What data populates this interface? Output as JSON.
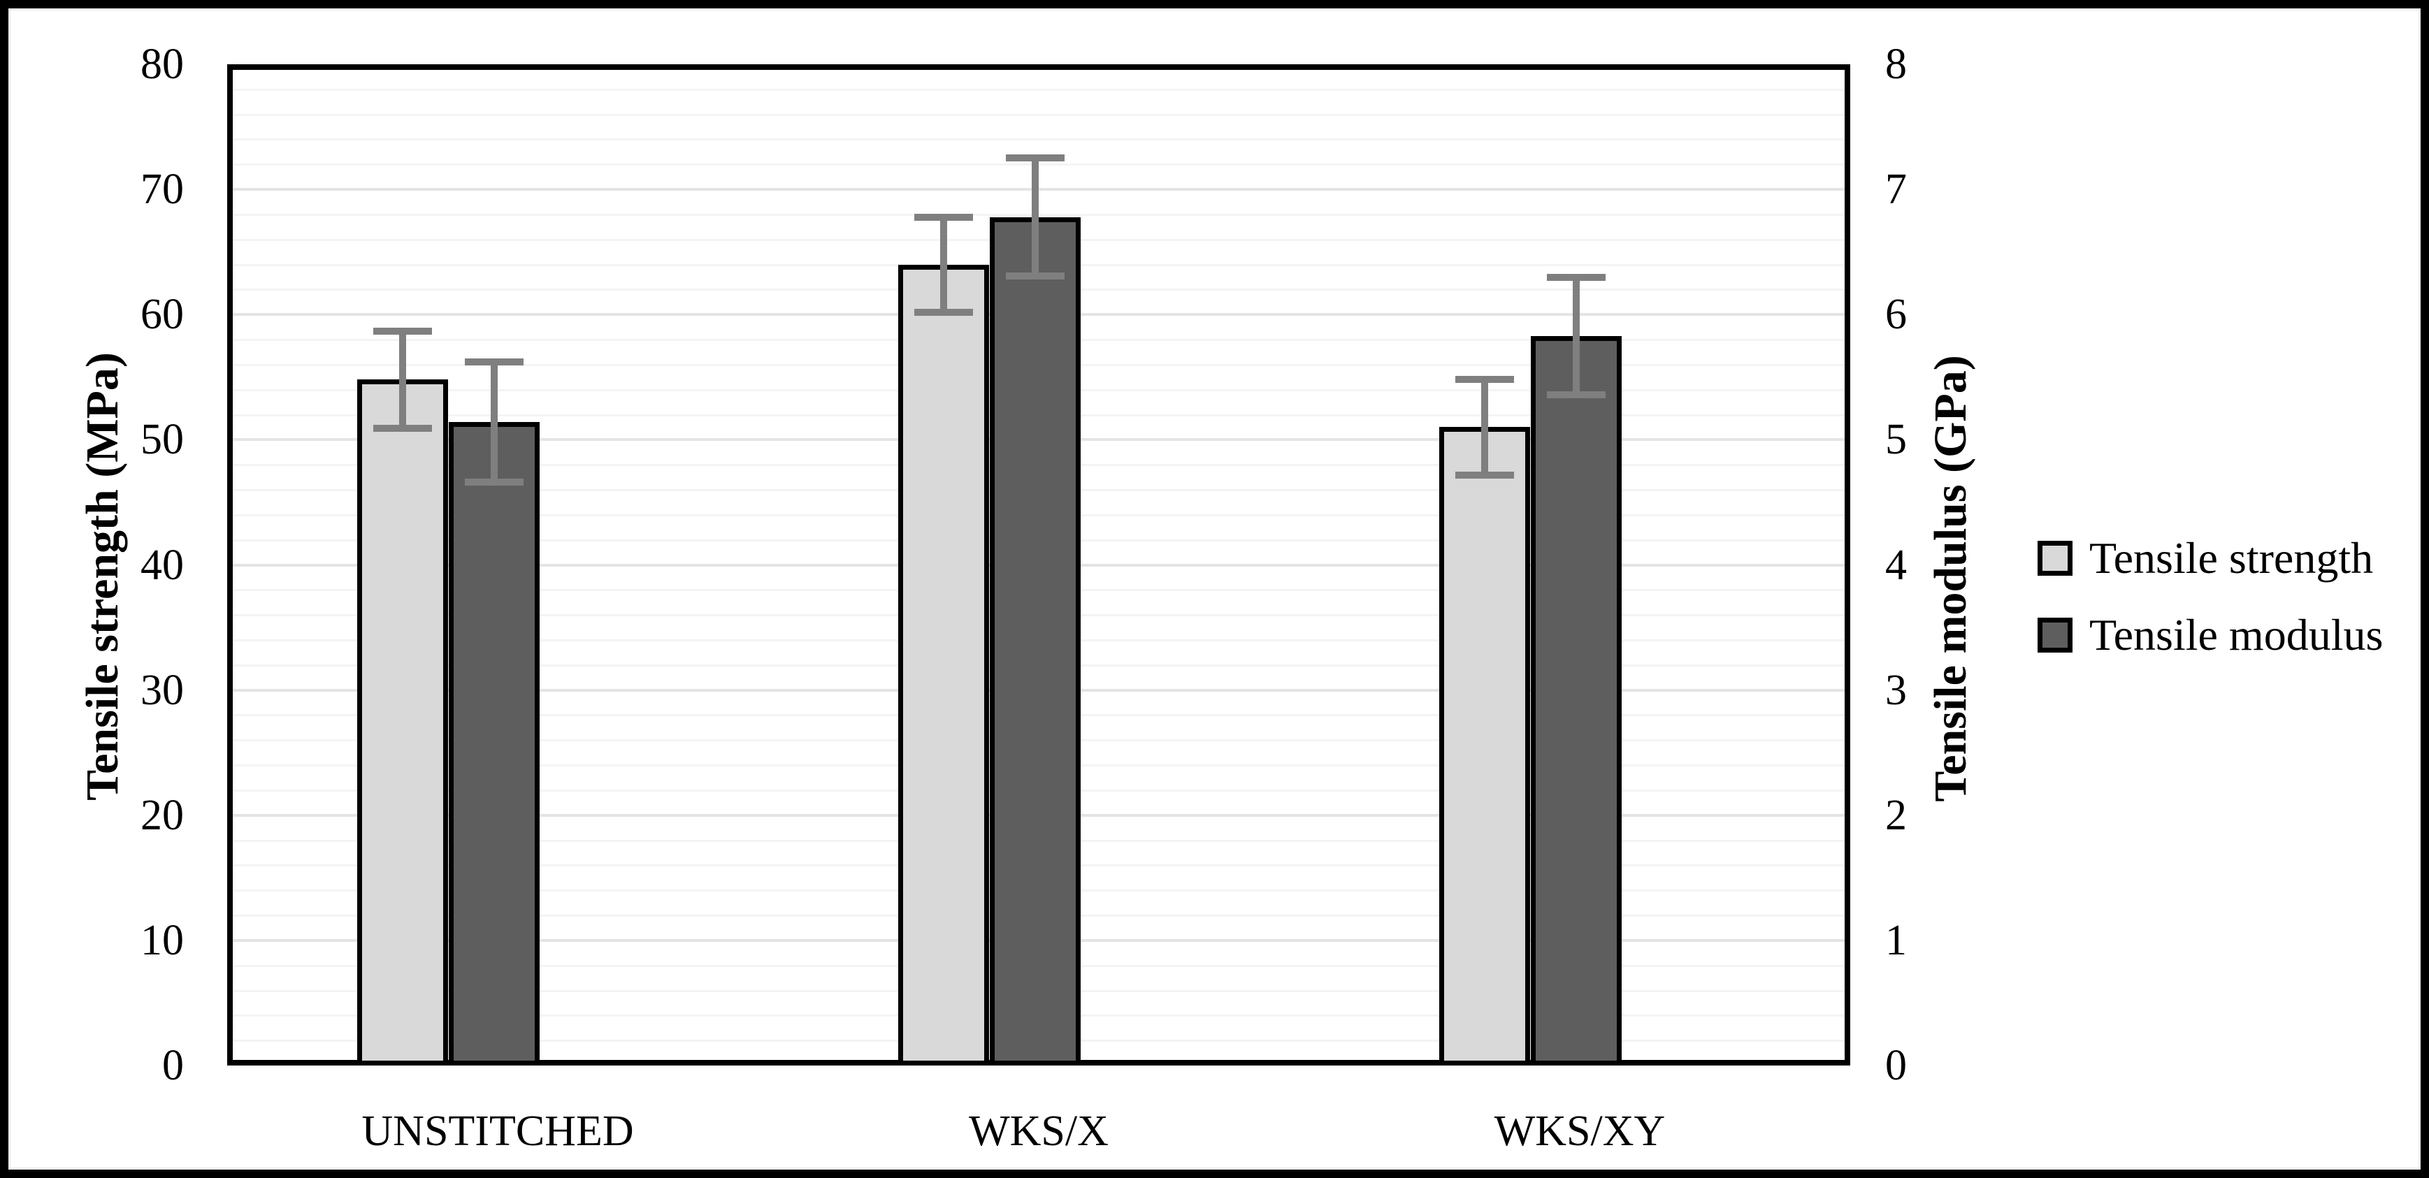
{
  "chart_data": {
    "type": "bar",
    "title": "",
    "categories": [
      "UNSTITCHED",
      "WKS/X",
      "WKS/XY"
    ],
    "series": [
      {
        "name": "Tensile strength",
        "axis": "left",
        "unit": "MPa",
        "values": [
          54.8,
          64.0,
          51.0
        ],
        "errors": [
          3.9,
          3.8,
          3.8
        ],
        "fill": "#d9d9d9"
      },
      {
        "name": "Tensile modulus",
        "axis": "right",
        "unit": "GPa",
        "values": [
          5.14,
          6.78,
          5.83
        ],
        "errors": [
          0.48,
          0.47,
          0.47
        ],
        "fill": "#5e5e5e"
      }
    ],
    "left_axis": {
      "label": "Tensile strength (MPa)",
      "min": 0,
      "max": 80,
      "major_step": 10,
      "minor_step": 2,
      "ticks": [
        "0",
        "10",
        "20",
        "30",
        "40",
        "50",
        "60",
        "70",
        "80"
      ]
    },
    "right_axis": {
      "label": "Tensile modulus (GPa)",
      "min": 0,
      "max": 8,
      "major_step": 1,
      "ticks": [
        "0",
        "1",
        "2",
        "3",
        "4",
        "5",
        "6",
        "7",
        "8"
      ]
    },
    "legend": {
      "position": "right",
      "entries": [
        "Tensile strength",
        "Tensile modulus"
      ]
    },
    "grid": {
      "minor_on": true,
      "major_on": true
    }
  },
  "colors": {
    "bar_light": "#d9d9d9",
    "bar_dark": "#5e5e5e",
    "bar_border": "#000000",
    "error_bar": "#7f7f7f",
    "grid_minor": "#f4f4f4",
    "grid_major": "#e4e4e4",
    "frame": "#000000",
    "background": "#ffffff"
  }
}
